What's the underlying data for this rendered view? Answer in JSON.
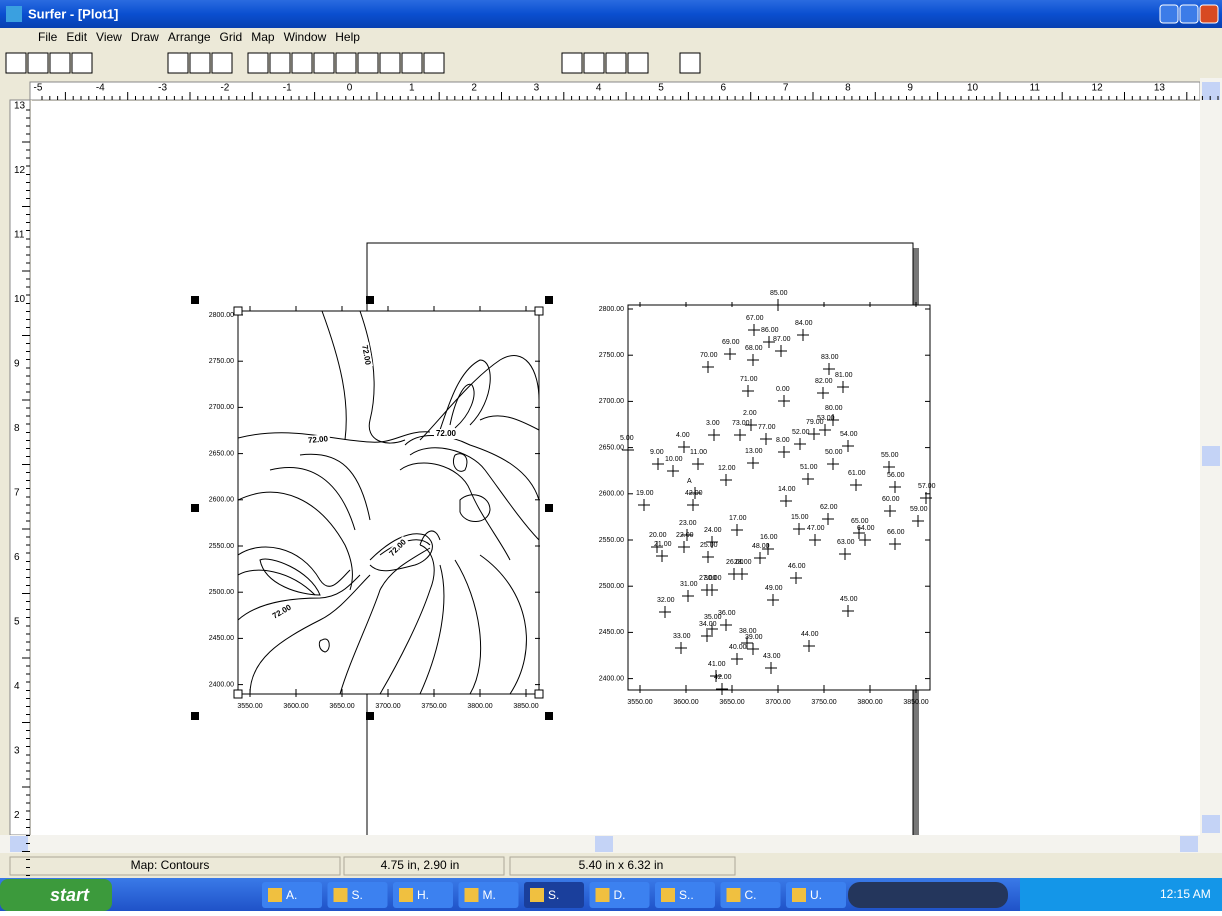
{
  "window": {
    "title": "Surfer - [Plot1]"
  },
  "menu": [
    "File",
    "Edit",
    "View",
    "Draw",
    "Arrange",
    "Grid",
    "Map",
    "Window",
    "Help"
  ],
  "ruler": {
    "horizontal": [
      "-5",
      "-4",
      "-3",
      "-2",
      "-1",
      "0",
      "1",
      "2",
      "3",
      "4",
      "5",
      "6",
      "7",
      "8",
      "9",
      "10",
      "11",
      "12",
      "13"
    ],
    "vertical": [
      "13",
      "12",
      "11",
      "10",
      "9",
      "8",
      "7",
      "6",
      "5",
      "4",
      "3",
      "2"
    ]
  },
  "contour_map": {
    "y_labels": [
      "2800.00",
      "2750.00",
      "2700.00",
      "2650.00",
      "2600.00",
      "2550.00",
      "2500.00",
      "2450.00",
      "2400.00"
    ],
    "x_labels": [
      "3550.00",
      "3600.00",
      "3650.00",
      "3700.00",
      "3750.00",
      "3800.00",
      "3850.00"
    ],
    "contour_labels": [
      "72.00",
      "72.00",
      "72.00",
      "72.00",
      "72.00"
    ]
  },
  "post_map": {
    "y_labels": [
      "2800.00",
      "2750.00",
      "2700.00",
      "2650.00",
      "2600.00",
      "2550.00",
      "2500.00",
      "2450.00",
      "2400.00"
    ],
    "x_labels": [
      "3550.00",
      "3600.00",
      "3650.00",
      "3700.00",
      "3750.00",
      "3800.00",
      "3850.00"
    ],
    "point_labels": [
      "85.00",
      "67.00",
      "84.00",
      "86.00",
      "69.00",
      "87.00",
      "68.00",
      "70.00",
      "83.00",
      "81.00",
      "71.00",
      "82.00",
      "0.00",
      "80.00",
      "2.00",
      "79.00",
      "53.00",
      "3.00",
      "73.00",
      "77.00",
      "52.00",
      "54.00",
      "4.00",
      "8.00",
      "5.00",
      "9.00",
      "11.00",
      "13.00",
      "55.00",
      "10.00",
      "51.00",
      "12.00",
      "50.00",
      "61.00",
      "56.00",
      "57.00",
      "14.00",
      "19.00",
      "A",
      "42.00",
      "60.00",
      "62.00",
      "59.00",
      "65.00",
      "15.00",
      "17.00",
      "23.00",
      "47.00",
      "64.00",
      "24.00",
      "66.00",
      "20.00",
      "22.00",
      "16.00",
      "63.00",
      "21.00",
      "25.00",
      "48.00",
      "26.00",
      "28.00",
      "46.00",
      "27.00",
      "30.00",
      "49.00",
      "31.00",
      "32.00",
      "45.00",
      "36.00",
      "35.00",
      "34.00",
      "38.00",
      "44.00",
      "39.00",
      "33.00",
      "40.00",
      "43.00",
      "41.00",
      "42.00"
    ]
  },
  "status_bar": [
    "Map: Contours",
    "4.75 in, 2.90 in",
    "5.40 in x 6.32 in"
  ],
  "taskbar": {
    "start": "start",
    "items": [
      "A.",
      "S.",
      "H.",
      "M.",
      "S.",
      "D.",
      "S..",
      "C.",
      "U."
    ],
    "clock": "12:15 AM"
  }
}
